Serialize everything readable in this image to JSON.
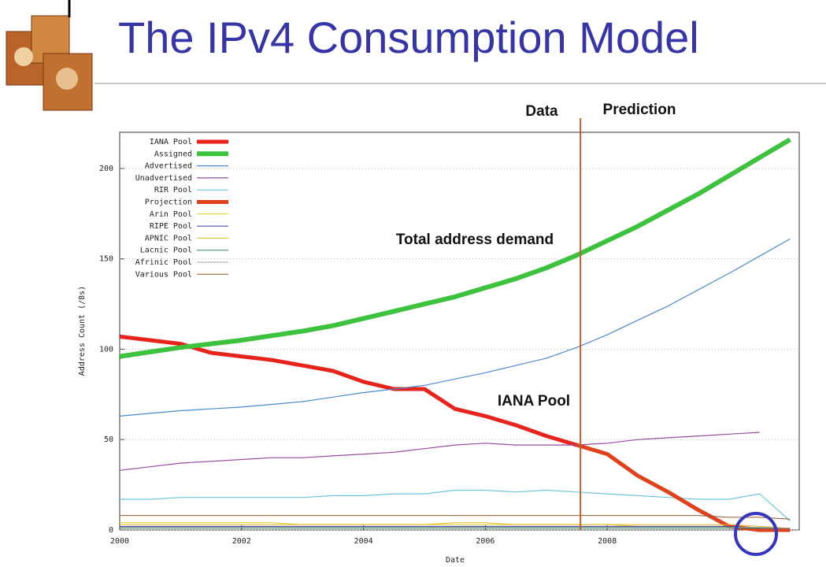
{
  "title": "The IPv4 Consumption Model",
  "chart_data": {
    "type": "line",
    "annotations": {
      "data": "Data",
      "prediction": "Prediction",
      "demand": "Total address demand",
      "iana": "IANA Pool",
      "divider_x": 2007.56
    },
    "x_label": "Date",
    "y_label": "Address Count (/8s)",
    "x": [
      2000,
      2000.5,
      2001,
      2001.5,
      2002,
      2002.5,
      2003,
      2003.5,
      2004,
      2004.5,
      2005,
      2005.5,
      2006,
      2006.5,
      2007,
      2007.5,
      2008,
      2008.5,
      2009,
      2009.5,
      2010,
      2010.5,
      2011
    ],
    "series": [
      {
        "name": "IANA Pool",
        "color": "#e8231b",
        "width": 5,
        "values": [
          107,
          105,
          103,
          98,
          96,
          94,
          91,
          88,
          82,
          78,
          78,
          67,
          63,
          58,
          52,
          47,
          null,
          null,
          null,
          null,
          null,
          null,
          null
        ]
      },
      {
        "name": "Assigned",
        "color": "#3cc23c",
        "width": 6,
        "values": [
          96,
          98.5,
          101,
          103,
          105,
          107.5,
          110,
          113,
          117,
          121,
          125,
          129,
          134,
          139,
          145,
          152,
          160,
          168,
          177,
          186,
          196,
          206,
          216
        ]
      },
      {
        "name": "Advertised",
        "color": "#4a8ad0",
        "width": 1.2,
        "values": [
          63,
          64.5,
          66,
          67,
          68,
          69.5,
          71,
          73.5,
          76,
          78,
          80,
          83.5,
          87,
          91,
          95,
          101,
          108,
          116,
          124,
          133,
          142,
          151.5,
          161
        ]
      },
      {
        "name": "Unadvertised",
        "color": "#9a4aa0",
        "width": 1.2,
        "values": [
          33,
          35,
          37,
          38,
          39,
          40,
          40,
          41,
          42,
          43,
          45,
          47,
          48,
          47,
          47,
          47,
          48,
          50,
          51,
          52,
          53,
          54,
          null
        ]
      },
      {
        "name": "RIR Pool",
        "color": "#6cc7dc",
        "width": 1.2,
        "values": [
          17,
          17,
          18,
          18,
          18,
          18,
          18,
          19,
          19,
          20,
          20,
          22,
          22,
          21,
          22,
          21,
          20,
          19,
          18,
          17,
          17,
          20,
          5
        ]
      },
      {
        "name": "Projection",
        "color": "#e0401a",
        "width": 5,
        "values": [
          null,
          null,
          null,
          null,
          null,
          null,
          null,
          null,
          null,
          null,
          null,
          null,
          null,
          null,
          null,
          47,
          42,
          30,
          21,
          11,
          2,
          0,
          0
        ]
      },
      {
        "name": "Arin Pool",
        "color": "#d8d020",
        "width": 1,
        "values": [
          4,
          4,
          4,
          4,
          4,
          4,
          3,
          3,
          3,
          3,
          3,
          3,
          3,
          3,
          3,
          3,
          3,
          2,
          2,
          2,
          2,
          1,
          1
        ]
      },
      {
        "name": "RIPE Pool",
        "color": "#3a3aa8",
        "width": 1,
        "values": [
          2,
          2,
          2,
          2,
          2,
          2,
          2,
          2,
          2,
          2,
          2,
          2,
          2,
          2,
          2,
          2,
          2,
          2,
          2,
          2,
          2,
          1,
          1
        ]
      },
      {
        "name": "APNIC Pool",
        "color": "#e8b820",
        "width": 1,
        "values": [
          3,
          3,
          3,
          3,
          3,
          3,
          3,
          3,
          3,
          3,
          3,
          4,
          4,
          3,
          3,
          3,
          3,
          3,
          3,
          3,
          3,
          2,
          1
        ]
      },
      {
        "name": "Lacnic Pool",
        "color": "#2a8a5a",
        "width": 1,
        "values": [
          1,
          1,
          1,
          1,
          1,
          1,
          1,
          1,
          1,
          1,
          1,
          1,
          1,
          1,
          1,
          1,
          1,
          1,
          1,
          1,
          1,
          1,
          1
        ]
      },
      {
        "name": "Afrinic Pool",
        "color": "#a0a0a0",
        "width": 1,
        "values": [
          1.5,
          1.5,
          1.5,
          1.5,
          1.5,
          1.5,
          1.5,
          1.5,
          1.5,
          1.5,
          1.5,
          1.5,
          1.5,
          1.5,
          1.5,
          1.5,
          1.5,
          1.5,
          1.5,
          1.5,
          1.5,
          1.5,
          1
        ]
      },
      {
        "name": "Various Pool",
        "color": "#8a5a30",
        "width": 1,
        "values": [
          8,
          8,
          8,
          8,
          8,
          8,
          8,
          8,
          8,
          8,
          8,
          8,
          8,
          8,
          8,
          8,
          8,
          8,
          8,
          8,
          7,
          7,
          6
        ]
      }
    ],
    "xlim": [
      2000,
      2011.15
    ],
    "ylim": [
      0,
      220
    ],
    "xticks": [
      2000,
      2002,
      2004,
      2006,
      2008
    ],
    "yticks": [
      0,
      50,
      100,
      150,
      200
    ],
    "grid": true,
    "legend": "upper left"
  }
}
